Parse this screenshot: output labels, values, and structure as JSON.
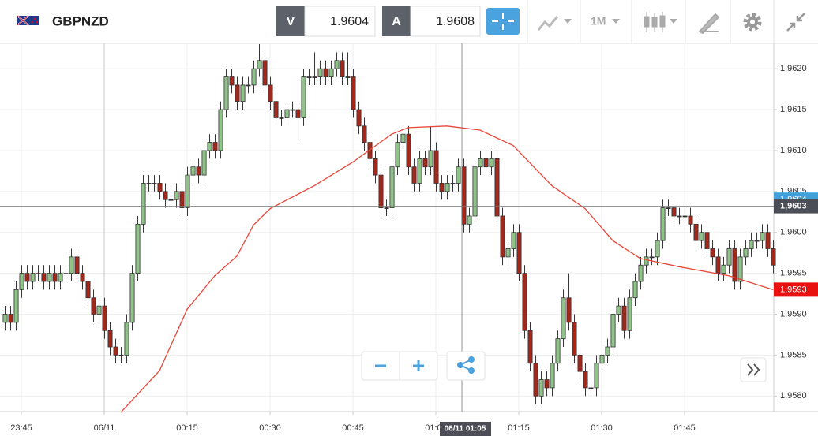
{
  "toolbar": {
    "symbol": "GBPNZD",
    "bid_label": "V",
    "bid": "1.9604",
    "ask_label": "A",
    "ask": "1.9608",
    "timeframe": "1M"
  },
  "chart_data": {
    "type": "candlestick",
    "open": [
      1.9589,
      1.959,
      1.9589,
      1.9593,
      1.9595,
      1.9594,
      1.9595,
      1.9595,
      1.9594,
      1.9595,
      1.9594,
      1.9595,
      1.9595,
      1.9597,
      1.9595,
      1.9594,
      1.9592,
      1.959,
      1.9591,
      1.9588,
      1.9586,
      1.9585,
      1.9585,
      1.9589,
      1.9595,
      1.9601,
      1.9606,
      1.9606,
      1.9606,
      1.9605,
      1.9604,
      1.9604,
      1.9605,
      1.9603,
      1.9607,
      1.9608,
      1.9607,
      1.961,
      1.9611,
      1.961,
      1.9615,
      1.9619,
      1.9618,
      1.9616,
      1.9618,
      1.9618,
      1.962,
      1.9621,
      1.9618,
      1.9616,
      1.9614,
      1.9614,
      1.9615,
      1.9615,
      1.9614,
      1.9619,
      1.9619,
      1.9619,
      1.962,
      1.9619,
      1.962,
      1.9621,
      1.9619,
      1.9619,
      1.9615,
      1.9613,
      1.9611,
      1.9609,
      1.9607,
      1.9603,
      1.9603,
      1.9608,
      1.9611,
      1.9612,
      1.9608,
      1.9606,
      1.9609,
      1.9608,
      1.961,
      1.9606,
      1.9605,
      1.9606,
      1.9606,
      1.9608,
      1.9601,
      1.9602,
      1.9608,
      1.9609,
      1.9608,
      1.9609,
      1.9602,
      1.9597,
      1.9598,
      1.96,
      1.9595,
      1.9588,
      1.9584,
      1.958,
      1.9582,
      1.9581,
      1.9584,
      1.9587,
      1.9592,
      1.9589,
      1.9585,
      1.9583,
      1.9581,
      1.9581,
      1.9584,
      1.9585,
      1.9586,
      1.959,
      1.9591,
      1.9588,
      1.9592,
      1.9594,
      1.9596,
      1.9597,
      1.9597,
      1.9599,
      1.9603,
      1.9603,
      1.9602,
      1.9602,
      1.9602,
      1.9601,
      1.9599,
      1.96,
      1.9598,
      1.9597,
      1.9595,
      1.9596,
      1.9598,
      1.9594,
      1.9597,
      1.9598,
      1.9599,
      1.9599,
      1.96,
      1.9598
    ],
    "high": [
      1.9591,
      1.9591,
      1.9594,
      1.9596,
      1.9596,
      1.9596,
      1.9596,
      1.9596,
      1.9596,
      1.9596,
      1.9596,
      1.9596,
      1.9598,
      1.9598,
      1.9596,
      1.9595,
      1.9593,
      1.9592,
      1.9592,
      1.9589,
      1.9587,
      1.9586,
      1.959,
      1.9596,
      1.9602,
      1.9607,
      1.9607,
      1.9607,
      1.9607,
      1.9606,
      1.9605,
      1.9606,
      1.9606,
      1.9608,
      1.9609,
      1.9609,
      1.9611,
      1.9612,
      1.9612,
      1.9616,
      1.962,
      1.962,
      1.9619,
      1.9619,
      1.9619,
      1.9621,
      1.9623,
      1.9622,
      1.9619,
      1.9617,
      1.9615,
      1.9616,
      1.9616,
      1.9616,
      1.962,
      1.962,
      1.9622,
      1.9621,
      1.9621,
      1.9621,
      1.9622,
      1.9622,
      1.9622,
      1.962,
      1.9616,
      1.9614,
      1.9612,
      1.961,
      1.9608,
      1.9604,
      1.9609,
      1.9612,
      1.9613,
      1.9613,
      1.9609,
      1.961,
      1.961,
      1.9613,
      1.9611,
      1.9607,
      1.9607,
      1.9607,
      1.9609,
      1.9609,
      1.9603,
      1.9609,
      1.961,
      1.961,
      1.961,
      1.961,
      1.9603,
      1.9599,
      1.9601,
      1.9601,
      1.9596,
      1.9589,
      1.9585,
      1.9583,
      1.9583,
      1.9585,
      1.9588,
      1.9593,
      1.9595,
      1.959,
      1.9586,
      1.9584,
      1.9582,
      1.9585,
      1.9586,
      1.9587,
      1.9591,
      1.9592,
      1.9592,
      1.9593,
      1.9595,
      1.9597,
      1.9598,
      1.9598,
      1.96,
      1.9604,
      1.9604,
      1.9604,
      1.9603,
      1.9603,
      1.9603,
      1.9602,
      1.9601,
      1.9601,
      1.9599,
      1.9598,
      1.9597,
      1.9599,
      1.9599,
      1.9598,
      1.9599,
      1.96,
      1.96,
      1.9601,
      1.9601,
      1.9599
    ],
    "low": [
      1.9588,
      1.9588,
      1.9588,
      1.9592,
      1.9593,
      1.9593,
      1.9594,
      1.9593,
      1.9593,
      1.9593,
      1.9593,
      1.9594,
      1.9594,
      1.9594,
      1.9593,
      1.9591,
      1.9589,
      1.9589,
      1.9587,
      1.9585,
      1.9584,
      1.9584,
      1.9584,
      1.9588,
      1.9594,
      1.96,
      1.9605,
      1.9605,
      1.9604,
      1.9603,
      1.9603,
      1.9603,
      1.9602,
      1.9602,
      1.9606,
      1.9606,
      1.9606,
      1.9609,
      1.9609,
      1.9609,
      1.9614,
      1.9617,
      1.9615,
      1.9615,
      1.9617,
      1.9617,
      1.9619,
      1.9617,
      1.9615,
      1.9613,
      1.9613,
      1.9613,
      1.9614,
      1.9611,
      1.9613,
      1.9618,
      1.9618,
      1.9618,
      1.9618,
      1.9618,
      1.9619,
      1.9618,
      1.9618,
      1.9614,
      1.9612,
      1.961,
      1.9608,
      1.9606,
      1.9602,
      1.9602,
      1.9602,
      1.9607,
      1.961,
      1.9607,
      1.9605,
      1.9605,
      1.9607,
      1.9607,
      1.9605,
      1.9604,
      1.9604,
      1.9605,
      1.9605,
      1.96,
      1.96,
      1.9601,
      1.9607,
      1.9607,
      1.9607,
      1.9601,
      1.9596,
      1.9596,
      1.9597,
      1.9594,
      1.9587,
      1.9583,
      1.9579,
      1.9579,
      1.958,
      1.958,
      1.9583,
      1.9586,
      1.9588,
      1.9584,
      1.9582,
      1.958,
      1.958,
      1.958,
      1.9583,
      1.9584,
      1.9585,
      1.9589,
      1.9587,
      1.9587,
      1.9591,
      1.9593,
      1.9595,
      1.9596,
      1.9596,
      1.9598,
      1.9602,
      1.9601,
      1.9601,
      1.9601,
      1.96,
      1.9598,
      1.9598,
      1.9597,
      1.9596,
      1.9594,
      1.9594,
      1.9595,
      1.9593,
      1.9593,
      1.9596,
      1.9597,
      1.9598,
      1.9598,
      1.9597,
      1.9595
    ],
    "close": [
      1.959,
      1.9589,
      1.9593,
      1.9595,
      1.9594,
      1.9595,
      1.9595,
      1.9594,
      1.9595,
      1.9594,
      1.9595,
      1.9595,
      1.9597,
      1.9595,
      1.9594,
      1.9592,
      1.959,
      1.9591,
      1.9588,
      1.9586,
      1.9585,
      1.9585,
      1.9589,
      1.9595,
      1.9601,
      1.9606,
      1.9606,
      1.9606,
      1.9605,
      1.9604,
      1.9604,
      1.9605,
      1.9603,
      1.9607,
      1.9608,
      1.9607,
      1.961,
      1.9611,
      1.961,
      1.9615,
      1.9619,
      1.9618,
      1.9616,
      1.9618,
      1.9618,
      1.962,
      1.9621,
      1.9618,
      1.9616,
      1.9614,
      1.9614,
      1.9615,
      1.9615,
      1.9614,
      1.9619,
      1.9619,
      1.9619,
      1.962,
      1.9619,
      1.962,
      1.9621,
      1.9619,
      1.9619,
      1.9615,
      1.9613,
      1.9611,
      1.9609,
      1.9607,
      1.9603,
      1.9603,
      1.9608,
      1.9611,
      1.9612,
      1.9608,
      1.9606,
      1.9609,
      1.9608,
      1.961,
      1.9606,
      1.9605,
      1.9606,
      1.9606,
      1.9608,
      1.9601,
      1.9602,
      1.9608,
      1.9609,
      1.9608,
      1.9609,
      1.9602,
      1.9597,
      1.9598,
      1.96,
      1.9595,
      1.9588,
      1.9584,
      1.958,
      1.9582,
      1.9581,
      1.9584,
      1.9587,
      1.9592,
      1.9589,
      1.9585,
      1.9583,
      1.9581,
      1.9581,
      1.9584,
      1.9585,
      1.9586,
      1.959,
      1.9591,
      1.9588,
      1.9592,
      1.9594,
      1.9596,
      1.9597,
      1.9597,
      1.9599,
      1.9603,
      1.9603,
      1.9602,
      1.9602,
      1.9602,
      1.9601,
      1.9599,
      1.96,
      1.9598,
      1.9597,
      1.9595,
      1.9596,
      1.9598,
      1.9594,
      1.9597,
      1.9598,
      1.9599,
      1.9599,
      1.96,
      1.9598,
      1.9596
    ],
    "up_color": "#8fc38a",
    "down_color": "#a3281b",
    "moving_average": {
      "color": "#e8473a",
      "x": [
        21,
        28,
        33,
        38,
        42,
        45,
        48,
        56,
        63,
        70,
        73,
        80,
        86,
        92,
        99,
        105,
        110,
        115,
        122,
        131,
        139
      ],
      "values": [
        1.9578,
        1.95831,
        1.95906,
        1.95947,
        1.95971,
        1.96009,
        1.96029,
        1.96057,
        1.96086,
        1.9612,
        1.96128,
        1.9613,
        1.96125,
        1.96106,
        1.96057,
        1.96029,
        1.9599,
        1.95968,
        1.95958,
        1.95947,
        1.9593
      ]
    },
    "xlim": [
      -0.86,
      139.14
    ],
    "ylim": [
      1.95781,
      1.96231
    ],
    "xticks": [
      {
        "value": 3,
        "label": "23:45"
      },
      {
        "value": 18,
        "label": "06/11"
      },
      {
        "value": 33,
        "label": "00:15"
      },
      {
        "value": 48,
        "label": "00:30"
      },
      {
        "value": 63,
        "label": "00:45"
      },
      {
        "value": 78,
        "label": "01:00"
      },
      {
        "value": 93,
        "label": "01:15"
      },
      {
        "value": 108,
        "label": "01:30"
      },
      {
        "value": 123,
        "label": "01:45"
      }
    ],
    "yticks": [
      {
        "value": 1.958,
        "label": "1,9580"
      },
      {
        "value": 1.9585,
        "label": "1,9585"
      },
      {
        "value": 1.959,
        "label": "1,9590"
      },
      {
        "value": 1.9595,
        "label": "1,9595"
      },
      {
        "value": 1.96,
        "label": "1,9600"
      },
      {
        "value": 1.9605,
        "label": "1,9605"
      },
      {
        "value": 1.961,
        "label": "1,9610"
      },
      {
        "value": 1.9615,
        "label": "1,9615"
      },
      {
        "value": 1.962,
        "label": "1,9620"
      }
    ],
    "grid": true,
    "price_markers": [
      {
        "value": 1.9604,
        "label": "1,9604",
        "color": "#3fa0dc"
      },
      {
        "value": 1.9593,
        "label": "1,9593",
        "color": "#e8110f"
      }
    ],
    "crosshair": {
      "index": 83,
      "label": "06/11 01:05",
      "price": 1.9603,
      "price_label": "1,9603"
    }
  }
}
